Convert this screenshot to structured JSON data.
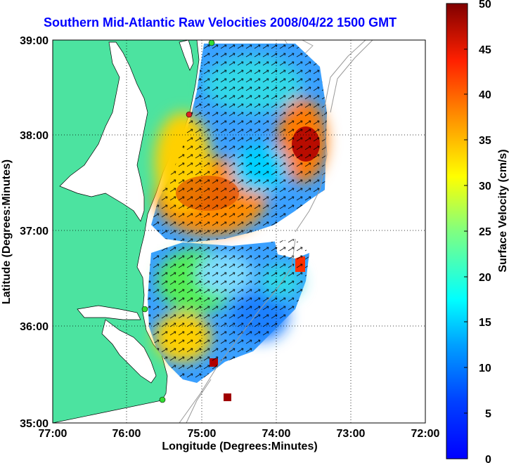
{
  "title": "Southern Mid-Atlantic Raw Velocities 2008/04/22 1500 GMT",
  "xaxis": {
    "label": "Longitude (Degrees:Minutes)",
    "ticks": [
      "77:00",
      "76:00",
      "75:00",
      "74:00",
      "73:00",
      "72:00"
    ]
  },
  "yaxis": {
    "label": "Latitude (Degrees:Minutes)",
    "ticks": [
      "39:00",
      "38:00",
      "37:00",
      "36:00",
      "35:00"
    ]
  },
  "colorbar": {
    "label": "Surface Velocity (cm/s)",
    "ticks": [
      "50",
      "45",
      "40",
      "35",
      "30",
      "25",
      "20",
      "15",
      "10",
      "5",
      "0"
    ],
    "range": [
      0,
      50
    ]
  },
  "colors": {
    "land": "#4ce3a0",
    "title": "#0000ff",
    "station_green": "#33dd33",
    "station_red": "#dd2222"
  }
}
